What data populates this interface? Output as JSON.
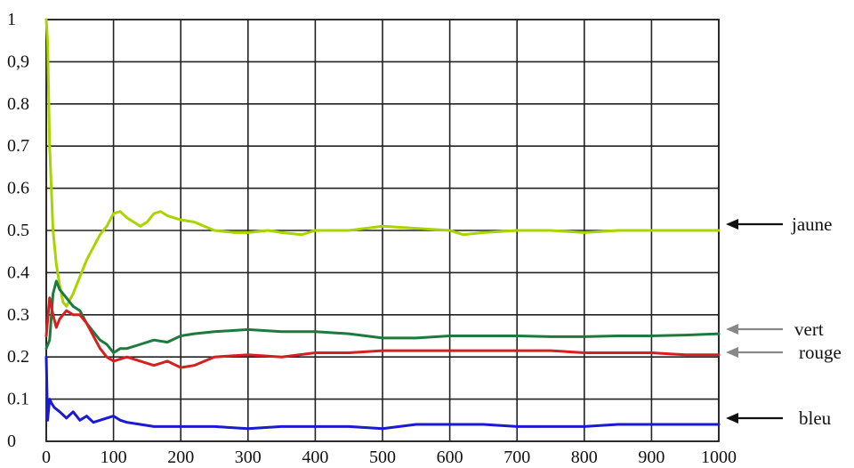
{
  "chart_data": {
    "type": "line",
    "title": "",
    "xlabel": "",
    "ylabel": "",
    "xlim": [
      0,
      1000
    ],
    "ylim": [
      0,
      1
    ],
    "grid": true,
    "xticks": [
      0,
      100,
      200,
      300,
      400,
      500,
      600,
      700,
      800,
      900,
      1000
    ],
    "xtick_labels": [
      "0",
      "100",
      "200",
      "300",
      "400",
      "500",
      "600",
      "700",
      "800",
      "900",
      "1000"
    ],
    "yticks": [
      0,
      0.1,
      0.2,
      0.3,
      0.4,
      0.5,
      0.6,
      0.7,
      0.8,
      0.9,
      1
    ],
    "ytick_labels": [
      "0",
      "0.1",
      "0.2",
      "0.3",
      "0.4",
      "0.5",
      "0.6",
      "0.7",
      "0.8",
      "0,9",
      "1"
    ],
    "series": [
      {
        "name": "jaune",
        "color": "#a8d400",
        "arrow_color": "#111111",
        "x": [
          0,
          2,
          5,
          10,
          15,
          20,
          25,
          30,
          40,
          50,
          60,
          70,
          80,
          90,
          100,
          110,
          120,
          130,
          140,
          150,
          160,
          170,
          180,
          190,
          200,
          220,
          250,
          280,
          300,
          330,
          350,
          380,
          400,
          450,
          500,
          550,
          600,
          620,
          650,
          700,
          750,
          800,
          850,
          900,
          950,
          1000
        ],
        "y": [
          1.0,
          0.95,
          0.7,
          0.5,
          0.42,
          0.37,
          0.33,
          0.32,
          0.35,
          0.39,
          0.43,
          0.46,
          0.49,
          0.51,
          0.54,
          0.545,
          0.53,
          0.52,
          0.51,
          0.52,
          0.54,
          0.545,
          0.535,
          0.53,
          0.525,
          0.52,
          0.5,
          0.495,
          0.495,
          0.5,
          0.495,
          0.49,
          0.5,
          0.5,
          0.51,
          0.505,
          0.5,
          0.49,
          0.495,
          0.5,
          0.5,
          0.495,
          0.5,
          0.5,
          0.5,
          0.5
        ]
      },
      {
        "name": "vert",
        "color": "#1e7a3c",
        "arrow_color": "#888888",
        "x": [
          0,
          5,
          10,
          15,
          20,
          30,
          40,
          50,
          60,
          70,
          80,
          90,
          100,
          110,
          120,
          140,
          160,
          180,
          200,
          220,
          250,
          300,
          350,
          400,
          450,
          500,
          550,
          600,
          650,
          700,
          750,
          800,
          850,
          900,
          950,
          1000
        ],
        "y": [
          0.22,
          0.24,
          0.35,
          0.38,
          0.36,
          0.34,
          0.32,
          0.31,
          0.28,
          0.26,
          0.24,
          0.23,
          0.21,
          0.22,
          0.22,
          0.23,
          0.24,
          0.235,
          0.25,
          0.255,
          0.26,
          0.265,
          0.26,
          0.26,
          0.255,
          0.245,
          0.245,
          0.25,
          0.25,
          0.25,
          0.248,
          0.248,
          0.25,
          0.25,
          0.252,
          0.255
        ]
      },
      {
        "name": "rouge",
        "color": "#d42020",
        "arrow_color": "#888888",
        "x": [
          0,
          5,
          10,
          15,
          20,
          30,
          40,
          50,
          60,
          70,
          80,
          90,
          100,
          110,
          120,
          140,
          160,
          180,
          200,
          220,
          250,
          300,
          350,
          400,
          450,
          500,
          550,
          600,
          650,
          700,
          750,
          800,
          850,
          900,
          950,
          1000
        ],
        "y": [
          0.25,
          0.34,
          0.3,
          0.27,
          0.29,
          0.31,
          0.3,
          0.3,
          0.28,
          0.25,
          0.22,
          0.2,
          0.19,
          0.195,
          0.2,
          0.19,
          0.18,
          0.19,
          0.175,
          0.18,
          0.2,
          0.205,
          0.2,
          0.21,
          0.21,
          0.215,
          0.215,
          0.215,
          0.215,
          0.215,
          0.215,
          0.21,
          0.21,
          0.21,
          0.205,
          0.205
        ]
      },
      {
        "name": "bleu",
        "color": "#1a1ad0",
        "arrow_color": "#111111",
        "x": [
          0,
          2,
          5,
          8,
          12,
          20,
          30,
          40,
          50,
          60,
          70,
          80,
          90,
          100,
          110,
          120,
          140,
          160,
          200,
          250,
          300,
          350,
          400,
          450,
          500,
          550,
          600,
          650,
          700,
          750,
          800,
          850,
          900,
          950,
          1000
        ],
        "y": [
          0.2,
          0.05,
          0.1,
          0.09,
          0.08,
          0.07,
          0.055,
          0.07,
          0.05,
          0.06,
          0.045,
          0.05,
          0.055,
          0.06,
          0.05,
          0.045,
          0.04,
          0.035,
          0.035,
          0.035,
          0.03,
          0.035,
          0.035,
          0.035,
          0.03,
          0.04,
          0.04,
          0.04,
          0.035,
          0.035,
          0.035,
          0.04,
          0.04,
          0.04,
          0.04
        ]
      }
    ]
  }
}
